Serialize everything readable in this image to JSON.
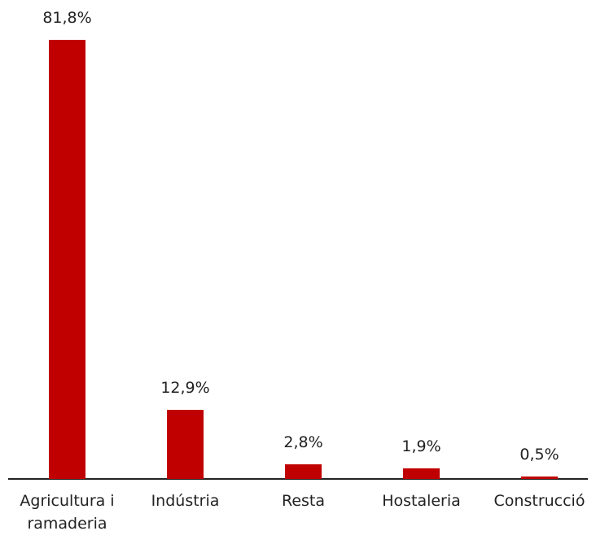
{
  "chart_data": {
    "type": "bar",
    "categories": [
      "Agricultura i ramaderia",
      "Indústria",
      "Resta",
      "Hostaleria",
      "Construcció"
    ],
    "values": [
      81.8,
      12.9,
      2.8,
      1.9,
      0.5
    ],
    "value_labels": [
      "81,8%",
      "12,9%",
      "2,8%",
      "1,9%",
      "0,5%"
    ],
    "color": "#c00000"
  }
}
